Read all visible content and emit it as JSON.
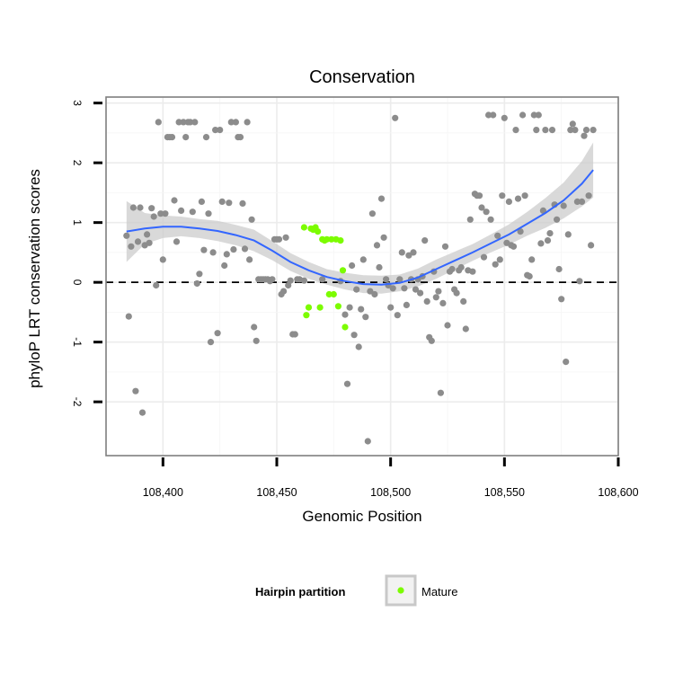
{
  "chart_data": {
    "type": "scatter",
    "title": "Conservation",
    "xlabel": "Genomic Position",
    "ylabel": "phyloP LRT conservation scores",
    "xlim": [
      108375,
      108600
    ],
    "ylim": [
      -2.9,
      3.1
    ],
    "x_ticks": [
      108400,
      108450,
      108500,
      108550,
      108600
    ],
    "x_tick_labels": [
      "108,400",
      "108,450",
      "108,500",
      "108,550",
      "108,600"
    ],
    "y_ticks": [
      -2,
      -1,
      0,
      1,
      2,
      3
    ],
    "y_tick_labels": [
      "-2",
      "-1",
      "0",
      "1",
      "2",
      "3"
    ],
    "grid": true,
    "reference_line": {
      "y": 0,
      "style": "dashed"
    },
    "legend": {
      "title": "Hairpin partition",
      "position": "bottom",
      "entries": [
        {
          "label": "Mature",
          "color": "#7cfc00"
        }
      ]
    },
    "colors": {
      "other": "#8c8c8c",
      "mature": "#7cfc00",
      "smooth": "#3366ff",
      "ribbon": "#cccccc"
    },
    "series": [
      {
        "category": "other",
        "points": [
          [
            108384,
            0.78
          ],
          [
            108385,
            -0.57
          ],
          [
            108386,
            0.6
          ],
          [
            108387,
            1.25
          ],
          [
            108388,
            -1.82
          ],
          [
            108389,
            0.68
          ],
          [
            108390,
            1.25
          ],
          [
            108391,
            -2.18
          ],
          [
            108392,
            0.62
          ],
          [
            108393,
            0.8
          ],
          [
            108394,
            0.66
          ],
          [
            108395,
            1.24
          ],
          [
            108396,
            1.1
          ],
          [
            108397,
            -0.05
          ],
          [
            108398,
            2.68
          ],
          [
            108399,
            1.15
          ],
          [
            108400,
            0.38
          ],
          [
            108401,
            1.15
          ],
          [
            108402,
            2.43
          ],
          [
            108403,
            2.43
          ],
          [
            108404,
            2.43
          ],
          [
            108405,
            1.37
          ],
          [
            108406,
            0.68
          ],
          [
            108407,
            2.68
          ],
          [
            108408,
            1.2
          ],
          [
            108409,
            2.68
          ],
          [
            108410,
            2.43
          ],
          [
            108411,
            2.68
          ],
          [
            108412,
            2.68
          ],
          [
            108413,
            1.18
          ],
          [
            108414,
            2.68
          ],
          [
            108415,
            -0.02
          ],
          [
            108416,
            0.14
          ],
          [
            108417,
            1.35
          ],
          [
            108418,
            0.54
          ],
          [
            108419,
            2.43
          ],
          [
            108420,
            1.15
          ],
          [
            108421,
            -1.0
          ],
          [
            108422,
            0.5
          ],
          [
            108423,
            2.55
          ],
          [
            108424,
            -0.85
          ],
          [
            108425,
            2.55
          ],
          [
            108426,
            1.35
          ],
          [
            108427,
            0.28
          ],
          [
            108428,
            0.47
          ],
          [
            108429,
            1.33
          ],
          [
            108430,
            2.68
          ],
          [
            108431,
            0.55
          ],
          [
            108432,
            2.68
          ],
          [
            108433,
            2.43
          ],
          [
            108434,
            2.43
          ],
          [
            108435,
            1.32
          ],
          [
            108436,
            0.56
          ],
          [
            108437,
            2.68
          ],
          [
            108438,
            0.38
          ],
          [
            108439,
            1.05
          ],
          [
            108440,
            -0.75
          ],
          [
            108441,
            -0.98
          ],
          [
            108442,
            0.05
          ],
          [
            108443,
            0.05
          ],
          [
            108444,
            0.05
          ],
          [
            108445,
            0.05
          ],
          [
            108446,
            0.05
          ],
          [
            108447,
            0.02
          ],
          [
            108448,
            0.05
          ],
          [
            108449,
            0.72
          ],
          [
            108450,
            0.72
          ],
          [
            108451,
            0.72
          ],
          [
            108452,
            -0.2
          ],
          [
            108453,
            -0.15
          ],
          [
            108454,
            0.75
          ],
          [
            108455,
            -0.05
          ],
          [
            108456,
            0.03
          ],
          [
            108457,
            -0.87
          ],
          [
            108458,
            -0.87
          ],
          [
            108459,
            0.05
          ],
          [
            108460,
            0.05
          ],
          [
            108462,
            0.03
          ],
          [
            108470,
            0.05
          ],
          [
            108478,
            0.02
          ],
          [
            108480,
            -0.54
          ],
          [
            108481,
            -1.7
          ],
          [
            108482,
            -0.42
          ],
          [
            108483,
            0.28
          ],
          [
            108484,
            -0.88
          ],
          [
            108485,
            -0.12
          ],
          [
            108486,
            -1.08
          ],
          [
            108487,
            -0.45
          ],
          [
            108488,
            0.38
          ],
          [
            108489,
            -0.58
          ],
          [
            108490,
            -2.66
          ],
          [
            108491,
            -0.15
          ],
          [
            108492,
            1.15
          ],
          [
            108493,
            -0.2
          ],
          [
            108494,
            0.62
          ],
          [
            108495,
            0.25
          ],
          [
            108496,
            1.4
          ],
          [
            108497,
            0.75
          ],
          [
            108498,
            0.05
          ],
          [
            108499,
            -0.05
          ],
          [
            108500,
            -0.42
          ],
          [
            108501,
            -0.1
          ],
          [
            108502,
            2.75
          ],
          [
            108503,
            -0.55
          ],
          [
            108504,
            0.05
          ],
          [
            108505,
            0.5
          ],
          [
            108506,
            -0.1
          ],
          [
            108507,
            -0.38
          ],
          [
            108508,
            0.45
          ],
          [
            108509,
            0.05
          ],
          [
            108510,
            0.5
          ],
          [
            108511,
            -0.12
          ],
          [
            108512,
            0.05
          ],
          [
            108513,
            -0.18
          ],
          [
            108514,
            0.1
          ],
          [
            108515,
            0.7
          ],
          [
            108516,
            -0.32
          ],
          [
            108517,
            -0.92
          ],
          [
            108518,
            -0.98
          ],
          [
            108519,
            0.18
          ],
          [
            108520,
            -0.25
          ],
          [
            108521,
            -0.15
          ],
          [
            108522,
            -1.85
          ],
          [
            108523,
            -0.35
          ],
          [
            108524,
            0.6
          ],
          [
            108525,
            -0.72
          ],
          [
            108526,
            0.18
          ],
          [
            108527,
            0.22
          ],
          [
            108528,
            -0.12
          ],
          [
            108529,
            -0.18
          ],
          [
            108530,
            0.2
          ],
          [
            108531,
            0.25
          ],
          [
            108532,
            -0.32
          ],
          [
            108533,
            -0.78
          ],
          [
            108534,
            0.2
          ],
          [
            108535,
            1.05
          ],
          [
            108536,
            0.18
          ],
          [
            108537,
            1.48
          ],
          [
            108538,
            1.45
          ],
          [
            108539,
            1.45
          ],
          [
            108540,
            1.25
          ],
          [
            108541,
            0.42
          ],
          [
            108542,
            1.18
          ],
          [
            108543,
            2.8
          ],
          [
            108544,
            1.05
          ],
          [
            108545,
            2.8
          ],
          [
            108546,
            0.3
          ],
          [
            108547,
            0.78
          ],
          [
            108548,
            0.38
          ],
          [
            108549,
            1.45
          ],
          [
            108550,
            2.75
          ],
          [
            108551,
            0.66
          ],
          [
            108552,
            1.35
          ],
          [
            108553,
            0.62
          ],
          [
            108554,
            0.6
          ],
          [
            108555,
            2.55
          ],
          [
            108556,
            1.4
          ],
          [
            108557,
            0.85
          ],
          [
            108558,
            2.8
          ],
          [
            108559,
            1.45
          ],
          [
            108560,
            0.12
          ],
          [
            108561,
            0.1
          ],
          [
            108562,
            0.38
          ],
          [
            108563,
            2.8
          ],
          [
            108564,
            2.55
          ],
          [
            108565,
            2.8
          ],
          [
            108566,
            0.65
          ],
          [
            108567,
            1.2
          ],
          [
            108568,
            2.55
          ],
          [
            108569,
            0.7
          ],
          [
            108570,
            0.82
          ],
          [
            108571,
            2.55
          ],
          [
            108572,
            1.3
          ],
          [
            108573,
            1.05
          ],
          [
            108574,
            0.22
          ],
          [
            108575,
            -0.28
          ],
          [
            108576,
            1.28
          ],
          [
            108577,
            -1.33
          ],
          [
            108578,
            0.8
          ],
          [
            108579,
            2.55
          ],
          [
            108580,
            2.65
          ],
          [
            108581,
            2.55
          ],
          [
            108582,
            1.35
          ],
          [
            108583,
            0.02
          ],
          [
            108584,
            1.35
          ],
          [
            108585,
            2.45
          ],
          [
            108586,
            2.55
          ],
          [
            108587,
            1.45
          ],
          [
            108588,
            0.62
          ],
          [
            108589,
            2.55
          ]
        ]
      },
      {
        "category": "mature",
        "points": [
          [
            108462,
            0.92
          ],
          [
            108463,
            -0.55
          ],
          [
            108464,
            -0.42
          ],
          [
            108465,
            0.9
          ],
          [
            108466,
            0.88
          ],
          [
            108467,
            0.92
          ],
          [
            108468,
            0.85
          ],
          [
            108469,
            -0.42
          ],
          [
            108470,
            0.72
          ],
          [
            108471,
            0.7
          ],
          [
            108472,
            0.72
          ],
          [
            108473,
            -0.2
          ],
          [
            108474,
            0.72
          ],
          [
            108475,
            -0.2
          ],
          [
            108476,
            0.72
          ],
          [
            108477,
            -0.4
          ],
          [
            108478,
            0.7
          ],
          [
            108479,
            0.2
          ],
          [
            108480,
            -0.75
          ]
        ]
      }
    ],
    "smooth": {
      "method": "loess",
      "x": [
        108384,
        108392,
        108400,
        108408,
        108416,
        108424,
        108432,
        108440,
        108448,
        108456,
        108464,
        108472,
        108480,
        108488,
        108496,
        108504,
        108512,
        108520,
        108528,
        108536,
        108544,
        108552,
        108560,
        108568,
        108576,
        108584,
        108589
      ],
      "y": [
        0.85,
        0.9,
        0.93,
        0.93,
        0.9,
        0.86,
        0.79,
        0.7,
        0.53,
        0.34,
        0.2,
        0.09,
        0.02,
        -0.03,
        -0.04,
        -0.01,
        0.08,
        0.22,
        0.36,
        0.5,
        0.65,
        0.8,
        0.98,
        1.16,
        1.37,
        1.65,
        1.88
      ],
      "lo": [
        0.34,
        0.64,
        0.74,
        0.77,
        0.74,
        0.69,
        0.62,
        0.52,
        0.37,
        0.19,
        0.06,
        -0.04,
        -0.12,
        -0.18,
        -0.19,
        -0.15,
        -0.07,
        0.06,
        0.21,
        0.36,
        0.5,
        0.63,
        0.78,
        0.91,
        1.07,
        1.27,
        1.42
      ],
      "hi": [
        1.36,
        1.16,
        1.12,
        1.1,
        1.06,
        1.03,
        0.96,
        0.88,
        0.69,
        0.49,
        0.34,
        0.22,
        0.16,
        0.12,
        0.11,
        0.13,
        0.23,
        0.38,
        0.51,
        0.64,
        0.8,
        0.97,
        1.18,
        1.41,
        1.67,
        2.03,
        2.34
      ]
    }
  }
}
